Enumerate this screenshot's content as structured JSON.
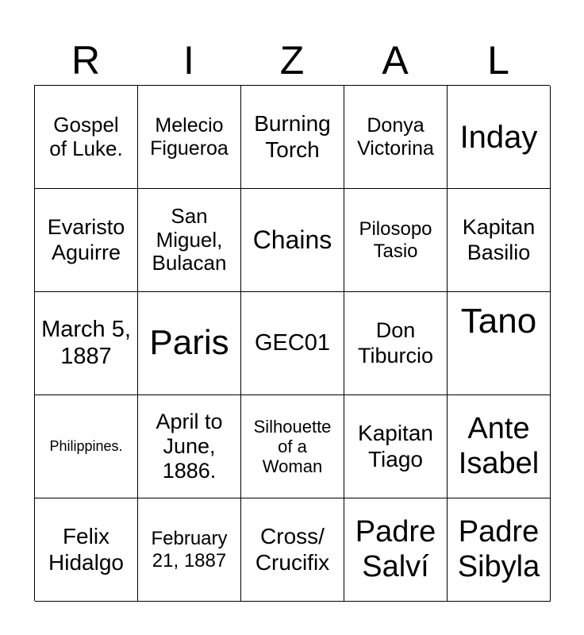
{
  "header": [
    "R",
    "I",
    "Z",
    "A",
    "L"
  ],
  "cells": [
    "Gospel of Luke.",
    "Melecio Figueroa",
    "Burning Torch",
    "Donya Victorina",
    "Inday",
    "Evaristo Aguirre",
    "San Miguel, Bulacan",
    "Chains",
    "Pilosopo Tasio",
    "Kapitan Basilio",
    "March 5, 1887",
    "Paris",
    "GEC01",
    "Don Tiburcio",
    "Tano",
    "Philippines.",
    "April to June, 1886.",
    "Silhouette of a Woman",
    "Kapitan Tiago",
    "Ante Isabel",
    "Felix Hidalgo",
    "February 21, 1887",
    "Cross/ Crucifix",
    "Padre Salví",
    "Padre Sibyla"
  ]
}
